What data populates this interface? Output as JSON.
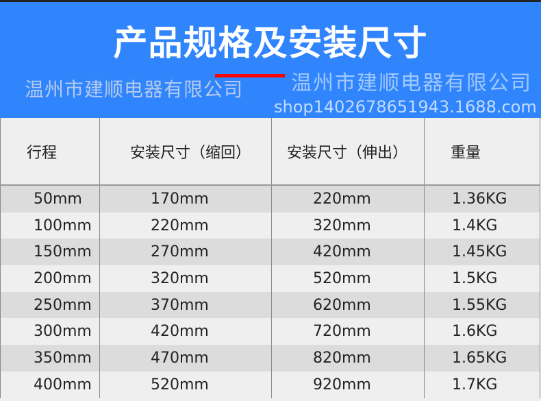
{
  "header": {
    "title": "产品规格及安装尺寸",
    "company": "温州市建顺电器有限公司",
    "background_color": "#3085fd",
    "accent_line_color": "#ff0000"
  },
  "table": {
    "columns": [
      "行程",
      "安装尺寸（缩回）",
      "安装尺寸（伸出）",
      "重量"
    ],
    "rows": [
      [
        "50mm",
        "170mm",
        "220mm",
        "1.36KG"
      ],
      [
        "100mm",
        "220mm",
        "320mm",
        "1.4KG"
      ],
      [
        "150mm",
        "270mm",
        "420mm",
        "1.45KG"
      ],
      [
        "200mm",
        "320mm",
        "520mm",
        "1.5KG"
      ],
      [
        "250mm",
        "370mm",
        "620mm",
        "1.55KG"
      ],
      [
        "300mm",
        "420mm",
        "720mm",
        "1.6KG"
      ],
      [
        "350mm",
        "470mm",
        "820mm",
        "1.65KG"
      ],
      [
        "400mm",
        "520mm",
        "920mm",
        "1.7KG"
      ]
    ]
  },
  "watermarks": {
    "company": "温州市建顺电器有限公司",
    "shop": "shop1402678651943.1688.com"
  }
}
